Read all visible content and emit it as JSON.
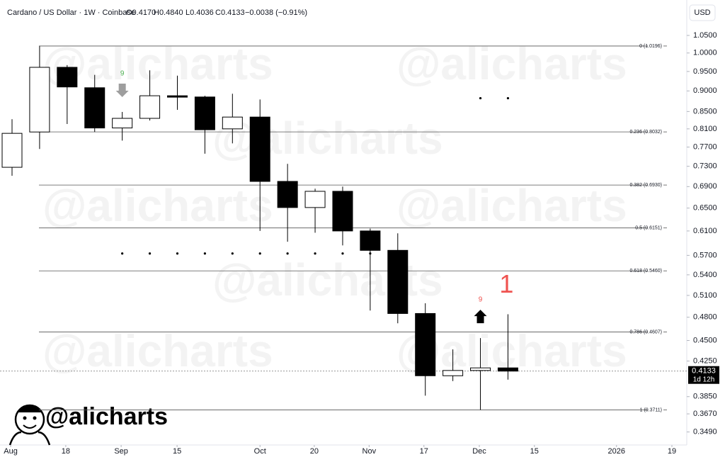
{
  "header": {
    "symbol": "Cardano / US Dollar · 1W · Coinbase",
    "ohlc_labels": [
      "O0.4170",
      "H0.4840",
      "L0.4036",
      "C0.4133"
    ],
    "change_label": "−0.0038 (−0.91%)",
    "currency": "USD"
  },
  "watermark": "@alicharts",
  "chart_data": {
    "type": "candlestick",
    "x": [
      0,
      1,
      2,
      3,
      4,
      5,
      6,
      7,
      8,
      9,
      10,
      11,
      12,
      13,
      14,
      15,
      16,
      17,
      18
    ],
    "open": [
      0.728,
      0.803,
      0.961,
      0.908,
      0.812,
      0.834,
      0.888,
      0.885,
      0.81,
      0.837,
      0.7,
      0.651,
      0.681,
      0.61,
      0.578,
      0.485,
      0.408,
      0.414,
      0.417
    ],
    "high": [
      0.832,
      1.019,
      0.967,
      0.941,
      0.849,
      0.953,
      0.939,
      0.888,
      0.893,
      0.879,
      0.735,
      0.686,
      0.69,
      0.614,
      0.606,
      0.499,
      0.439,
      0.453,
      0.484
    ],
    "low": [
      0.711,
      0.766,
      0.821,
      0.803,
      0.784,
      0.829,
      0.854,
      0.756,
      0.778,
      0.61,
      0.592,
      0.607,
      0.586,
      0.489,
      0.472,
      0.386,
      0.402,
      0.3711,
      0.4036
    ],
    "close": [
      0.8,
      0.961,
      0.91,
      0.812,
      0.834,
      0.888,
      0.886,
      0.808,
      0.837,
      0.7,
      0.651,
      0.681,
      0.61,
      0.578,
      0.485,
      0.408,
      0.414,
      0.417,
      0.4133
    ],
    "up_color": "#ffffff",
    "down_color": "#000000",
    "log_y": true,
    "xlim": [
      -0.437,
      24.49
    ],
    "ylim": [
      0.3366,
      1.1586
    ],
    "xticks": [
      {
        "value": -0.05,
        "label": "Aug"
      },
      {
        "value": 1.95,
        "label": "18"
      },
      {
        "value": 3.96,
        "label": "Sep"
      },
      {
        "value": 5.99,
        "label": "15"
      },
      {
        "value": 9.0,
        "label": "Oct"
      },
      {
        "value": 10.97,
        "label": "20"
      },
      {
        "value": 12.96,
        "label": "Nov"
      },
      {
        "value": 14.95,
        "label": "17"
      },
      {
        "value": 16.96,
        "label": "Dec"
      },
      {
        "value": 18.96,
        "label": "15"
      },
      {
        "value": 21.94,
        "label": "2026"
      },
      {
        "value": 23.95,
        "label": "19"
      }
    ],
    "yticks": [
      {
        "value": 1.05,
        "label": "1.0500"
      },
      {
        "value": 1.0,
        "label": "1.0000"
      },
      {
        "value": 0.95,
        "label": "0.9500"
      },
      {
        "value": 0.9,
        "label": "0.9000"
      },
      {
        "value": 0.85,
        "label": "0.8500"
      },
      {
        "value": 0.81,
        "label": "0.8100"
      },
      {
        "value": 0.77,
        "label": "0.7700"
      },
      {
        "value": 0.73,
        "label": "0.7300"
      },
      {
        "value": 0.69,
        "label": "0.6900"
      },
      {
        "value": 0.65,
        "label": "0.6500"
      },
      {
        "value": 0.61,
        "label": "0.6100"
      },
      {
        "value": 0.57,
        "label": "0.5700"
      },
      {
        "value": 0.54,
        "label": "0.5400"
      },
      {
        "value": 0.51,
        "label": "0.5100"
      },
      {
        "value": 0.48,
        "label": "0.4800"
      },
      {
        "value": 0.45,
        "label": "0.4500"
      },
      {
        "value": 0.425,
        "label": "0.4250"
      },
      {
        "value": 0.385,
        "label": "0.3850"
      },
      {
        "value": 0.367,
        "label": "0.3670"
      },
      {
        "value": 0.349,
        "label": "0.3490"
      }
    ],
    "grid": false,
    "fib_levels": [
      {
        "value": 1.0196,
        "label": "0 (1.0196)"
      },
      {
        "value": 0.8032,
        "label": "0.236 (0.8032)"
      },
      {
        "value": 0.693,
        "label": "0.382 (0.6930)"
      },
      {
        "value": 0.6151,
        "label": "0.5 (0.6151)"
      },
      {
        "value": 0.546,
        "label": "0.618 (0.5460)"
      },
      {
        "value": 0.4607,
        "label": "0.786 (0.4607)"
      },
      {
        "value": 0.3711,
        "label": "1 (0.3711)"
      }
    ],
    "dot_series": [
      {
        "x": [
          4,
          5,
          6,
          7,
          8,
          9,
          10,
          11,
          12,
          13
        ],
        "y": [
          0.573,
          0.573,
          0.573,
          0.573,
          0.573,
          0.573,
          0.573,
          0.573,
          0.573,
          0.573
        ]
      },
      {
        "x": [
          17,
          18
        ],
        "y": [
          0.882,
          0.882
        ]
      }
    ],
    "signals": [
      {
        "x": 4,
        "label": "9",
        "color": "#4caf50",
        "arrow": "down",
        "arrow_color": "#9e9e9e"
      },
      {
        "x": 17,
        "label": "9",
        "color": "#ef5350",
        "arrow": "up",
        "arrow_color": "#000000"
      },
      {
        "x": 18,
        "label": "1",
        "color": "#ef5350",
        "size": "large"
      }
    ],
    "price_label": {
      "value": 0.4133,
      "label": "0.4133"
    },
    "countdown": "1d 12h"
  }
}
